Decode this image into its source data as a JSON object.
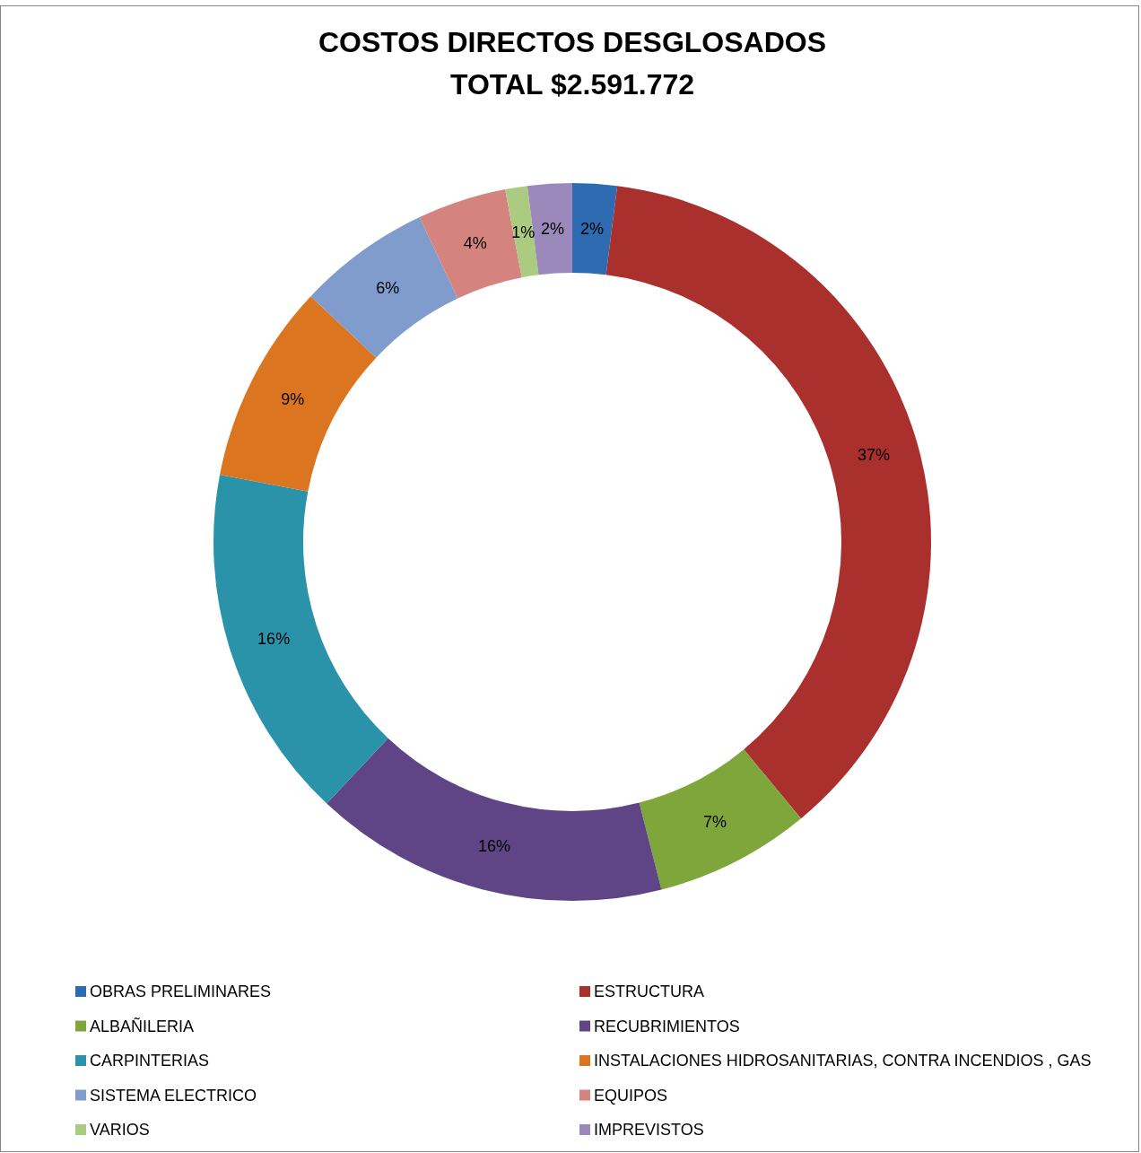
{
  "chart_data": {
    "type": "donut",
    "title": "COSTOS DIRECTOS DESGLOSADOS\nTOTAL $2.591.772",
    "categories": [
      "OBRAS PRELIMINARES",
      "ESTRUCTURA",
      "ALBAÑILERIA",
      "RECUBRIMIENTOS",
      "CARPINTERIAS",
      "INSTALACIONES HIDROSANITARIAS, CONTRA INCENDIOS , GAS",
      "SISTEMA ELECTRICO",
      "EQUIPOS",
      "VARIOS",
      "IMPREVISTOS"
    ],
    "values": [
      2,
      37,
      7,
      16,
      16,
      9,
      6,
      4,
      1,
      2
    ],
    "value_labels": [
      "2%",
      "37%",
      "7%",
      "16%",
      "16%",
      "9%",
      "6%",
      "4%",
      "1%",
      "2%"
    ],
    "colors": [
      "#2e6bb0",
      "#aa302d",
      "#7ea63a",
      "#5f4486",
      "#2a93aa",
      "#dc7520",
      "#7f9ccc",
      "#d4837f",
      "#aacb80",
      "#9b89bb"
    ],
    "legend": "bottom"
  }
}
